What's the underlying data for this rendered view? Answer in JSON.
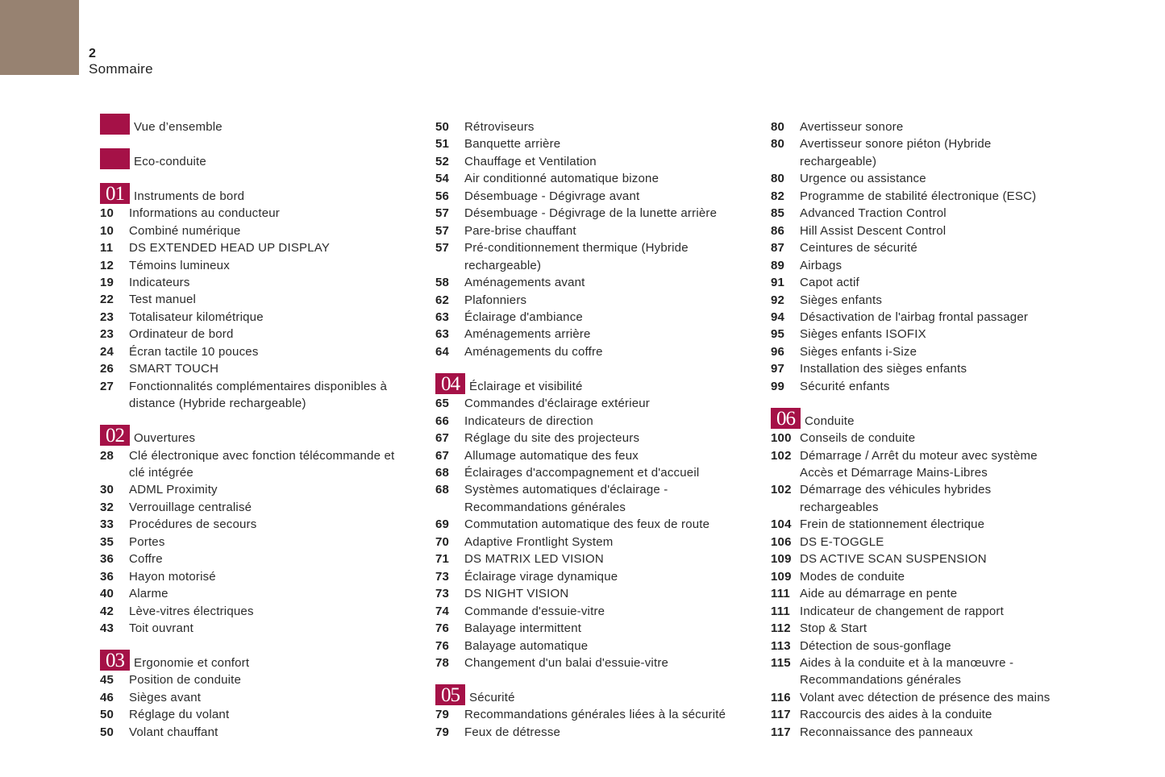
{
  "header": {
    "page_number": "2",
    "title": "Sommaire"
  },
  "colors": {
    "accent": "#a51147",
    "corner": "#978271"
  },
  "columns": [
    [
      {
        "type": "section",
        "badge": "",
        "title": "Vue d’ensemble"
      },
      {
        "type": "section",
        "badge": "",
        "title": "Eco-conduite"
      },
      {
        "type": "section",
        "badge": "01",
        "title": "Instruments de bord"
      },
      {
        "type": "item",
        "page": "10",
        "text": "Informations au conducteur"
      },
      {
        "type": "item",
        "page": "10",
        "text": "Combiné numérique"
      },
      {
        "type": "item",
        "page": "11",
        "text": "DS EXTENDED HEAD UP DISPLAY"
      },
      {
        "type": "item",
        "page": "12",
        "text": "Témoins lumineux"
      },
      {
        "type": "item",
        "page": "19",
        "text": "Indicateurs"
      },
      {
        "type": "item",
        "page": "22",
        "text": "Test manuel"
      },
      {
        "type": "item",
        "page": "23",
        "text": "Totalisateur kilométrique"
      },
      {
        "type": "item",
        "page": "23",
        "text": "Ordinateur de bord"
      },
      {
        "type": "item",
        "page": "24",
        "text": "Écran tactile 10 pouces"
      },
      {
        "type": "item",
        "page": "26",
        "text": "SMART TOUCH"
      },
      {
        "type": "item",
        "page": "27",
        "text": "Fonctionnalités complémentaires disponibles à distance (Hybride rechargeable)"
      },
      {
        "type": "section",
        "badge": "02",
        "title": "Ouvertures"
      },
      {
        "type": "item",
        "page": "28",
        "text": "Clé électronique avec fonction télécommande et clé intégrée"
      },
      {
        "type": "item",
        "page": "30",
        "text": "ADML Proximity"
      },
      {
        "type": "item",
        "page": "32",
        "text": "Verrouillage centralisé"
      },
      {
        "type": "item",
        "page": "33",
        "text": "Procédures de secours"
      },
      {
        "type": "item",
        "page": "35",
        "text": "Portes"
      },
      {
        "type": "item",
        "page": "36",
        "text": "Coffre"
      },
      {
        "type": "item",
        "page": "36",
        "text": "Hayon motorisé"
      },
      {
        "type": "item",
        "page": "40",
        "text": "Alarme"
      },
      {
        "type": "item",
        "page": "42",
        "text": "Lève-vitres électriques"
      },
      {
        "type": "item",
        "page": "43",
        "text": "Toit ouvrant"
      },
      {
        "type": "section",
        "badge": "03",
        "title": "Ergonomie et confort"
      },
      {
        "type": "item",
        "page": "45",
        "text": "Position de conduite"
      },
      {
        "type": "item",
        "page": "46",
        "text": "Sièges avant"
      },
      {
        "type": "item",
        "page": "50",
        "text": "Réglage du volant"
      },
      {
        "type": "item",
        "page": "50",
        "text": "Volant chauffant"
      }
    ],
    [
      {
        "type": "item",
        "page": "50",
        "text": "Rétroviseurs"
      },
      {
        "type": "item",
        "page": "51",
        "text": "Banquette arrière"
      },
      {
        "type": "item",
        "page": "52",
        "text": "Chauffage et Ventilation"
      },
      {
        "type": "item",
        "page": "54",
        "text": "Air conditionné automatique bizone"
      },
      {
        "type": "item",
        "page": "56",
        "text": "Désembuage - Dégivrage avant"
      },
      {
        "type": "item",
        "page": "57",
        "text": "Désembuage - Dégivrage de la lunette arrière"
      },
      {
        "type": "item",
        "page": "57",
        "text": "Pare-brise chauffant"
      },
      {
        "type": "item",
        "page": "57",
        "text": "Pré-conditionnement thermique (Hybride rechargeable)"
      },
      {
        "type": "item",
        "page": "58",
        "text": "Aménagements avant"
      },
      {
        "type": "item",
        "page": "62",
        "text": "Plafonniers"
      },
      {
        "type": "item",
        "page": "63",
        "text": "Éclairage d'ambiance"
      },
      {
        "type": "item",
        "page": "63",
        "text": "Aménagements arrière"
      },
      {
        "type": "item",
        "page": "64",
        "text": "Aménagements du coffre"
      },
      {
        "type": "section",
        "badge": "04",
        "title": "Éclairage et visibilité"
      },
      {
        "type": "item",
        "page": "65",
        "text": "Commandes d'éclairage extérieur"
      },
      {
        "type": "item",
        "page": "66",
        "text": "Indicateurs de direction"
      },
      {
        "type": "item",
        "page": "67",
        "text": "Réglage du site des projecteurs"
      },
      {
        "type": "item",
        "page": "67",
        "text": "Allumage automatique des feux"
      },
      {
        "type": "item",
        "page": "68",
        "text": "Éclairages d'accompagnement et d'accueil"
      },
      {
        "type": "item",
        "page": "68",
        "text": "Systèmes automatiques d'éclairage - Recommandations générales"
      },
      {
        "type": "item",
        "page": "69",
        "text": "Commutation automatique des feux de route"
      },
      {
        "type": "item",
        "page": "70",
        "text": "Adaptive Frontlight System"
      },
      {
        "type": "item",
        "page": "71",
        "text": "DS MATRIX LED VISION"
      },
      {
        "type": "item",
        "page": "73",
        "text": "Éclairage virage dynamique"
      },
      {
        "type": "item",
        "page": "73",
        "text": "DS NIGHT VISION"
      },
      {
        "type": "item",
        "page": "74",
        "text": "Commande d'essuie-vitre"
      },
      {
        "type": "item",
        "page": "76",
        "text": "Balayage intermittent"
      },
      {
        "type": "item",
        "page": "76",
        "text": "Balayage automatique"
      },
      {
        "type": "item",
        "page": "78",
        "text": "Changement d'un balai d'essuie-vitre"
      },
      {
        "type": "section",
        "badge": "05",
        "title": "Sécurité"
      },
      {
        "type": "item",
        "page": "79",
        "text": "Recommandations générales liées à la sécurité"
      },
      {
        "type": "item",
        "page": "79",
        "text": "Feux de détresse"
      }
    ],
    [
      {
        "type": "item",
        "page": "80",
        "text": "Avertisseur sonore"
      },
      {
        "type": "item",
        "page": "80",
        "text": "Avertisseur sonore piéton (Hybride rechargeable)"
      },
      {
        "type": "item",
        "page": "80",
        "text": "Urgence ou assistance"
      },
      {
        "type": "item",
        "page": "82",
        "text": "Programme de stabilité électronique (ESC)"
      },
      {
        "type": "item",
        "page": "85",
        "text": "Advanced Traction Control"
      },
      {
        "type": "item",
        "page": "86",
        "text": "Hill Assist Descent Control"
      },
      {
        "type": "item",
        "page": "87",
        "text": "Ceintures de sécurité"
      },
      {
        "type": "item",
        "page": "89",
        "text": "Airbags"
      },
      {
        "type": "item",
        "page": "91",
        "text": "Capot actif"
      },
      {
        "type": "item",
        "page": "92",
        "text": "Sièges enfants"
      },
      {
        "type": "item",
        "page": "94",
        "text": "Désactivation de l'airbag frontal passager"
      },
      {
        "type": "item",
        "page": "95",
        "text": "Sièges enfants ISOFIX"
      },
      {
        "type": "item",
        "page": "96",
        "text": "Sièges enfants i-Size"
      },
      {
        "type": "item",
        "page": "97",
        "text": "Installation des sièges enfants"
      },
      {
        "type": "item",
        "page": "99",
        "text": "Sécurité enfants"
      },
      {
        "type": "section",
        "badge": "06",
        "title": "Conduite"
      },
      {
        "type": "item",
        "page": "100",
        "text": "Conseils de conduite"
      },
      {
        "type": "item",
        "page": "102",
        "text": "Démarrage / Arrêt du moteur avec système Accès et Démarrage Mains-Libres"
      },
      {
        "type": "item",
        "page": "102",
        "text": "Démarrage des véhicules hybrides rechargeables"
      },
      {
        "type": "item",
        "page": "104",
        "text": "Frein de stationnement électrique"
      },
      {
        "type": "item",
        "page": "106",
        "text": "DS E-TOGGLE"
      },
      {
        "type": "item",
        "page": "109",
        "text": "DS ACTIVE SCAN SUSPENSION"
      },
      {
        "type": "item",
        "page": "109",
        "text": "Modes de conduite"
      },
      {
        "type": "item",
        "page": "111",
        "text": "Aide au démarrage en pente"
      },
      {
        "type": "item",
        "page": "111",
        "text": "Indicateur de changement de rapport"
      },
      {
        "type": "item",
        "page": "112",
        "text": "Stop & Start"
      },
      {
        "type": "item",
        "page": "113",
        "text": "Détection de sous-gonflage"
      },
      {
        "type": "item",
        "page": "115",
        "text": "Aides à la conduite et à la manœuvre - Recommandations générales"
      },
      {
        "type": "item",
        "page": "116",
        "text": "Volant avec détection de présence des mains"
      },
      {
        "type": "item",
        "page": "117",
        "text": "Raccourcis des aides à la conduite"
      },
      {
        "type": "item",
        "page": "117",
        "text": "Reconnaissance des panneaux"
      }
    ]
  ]
}
